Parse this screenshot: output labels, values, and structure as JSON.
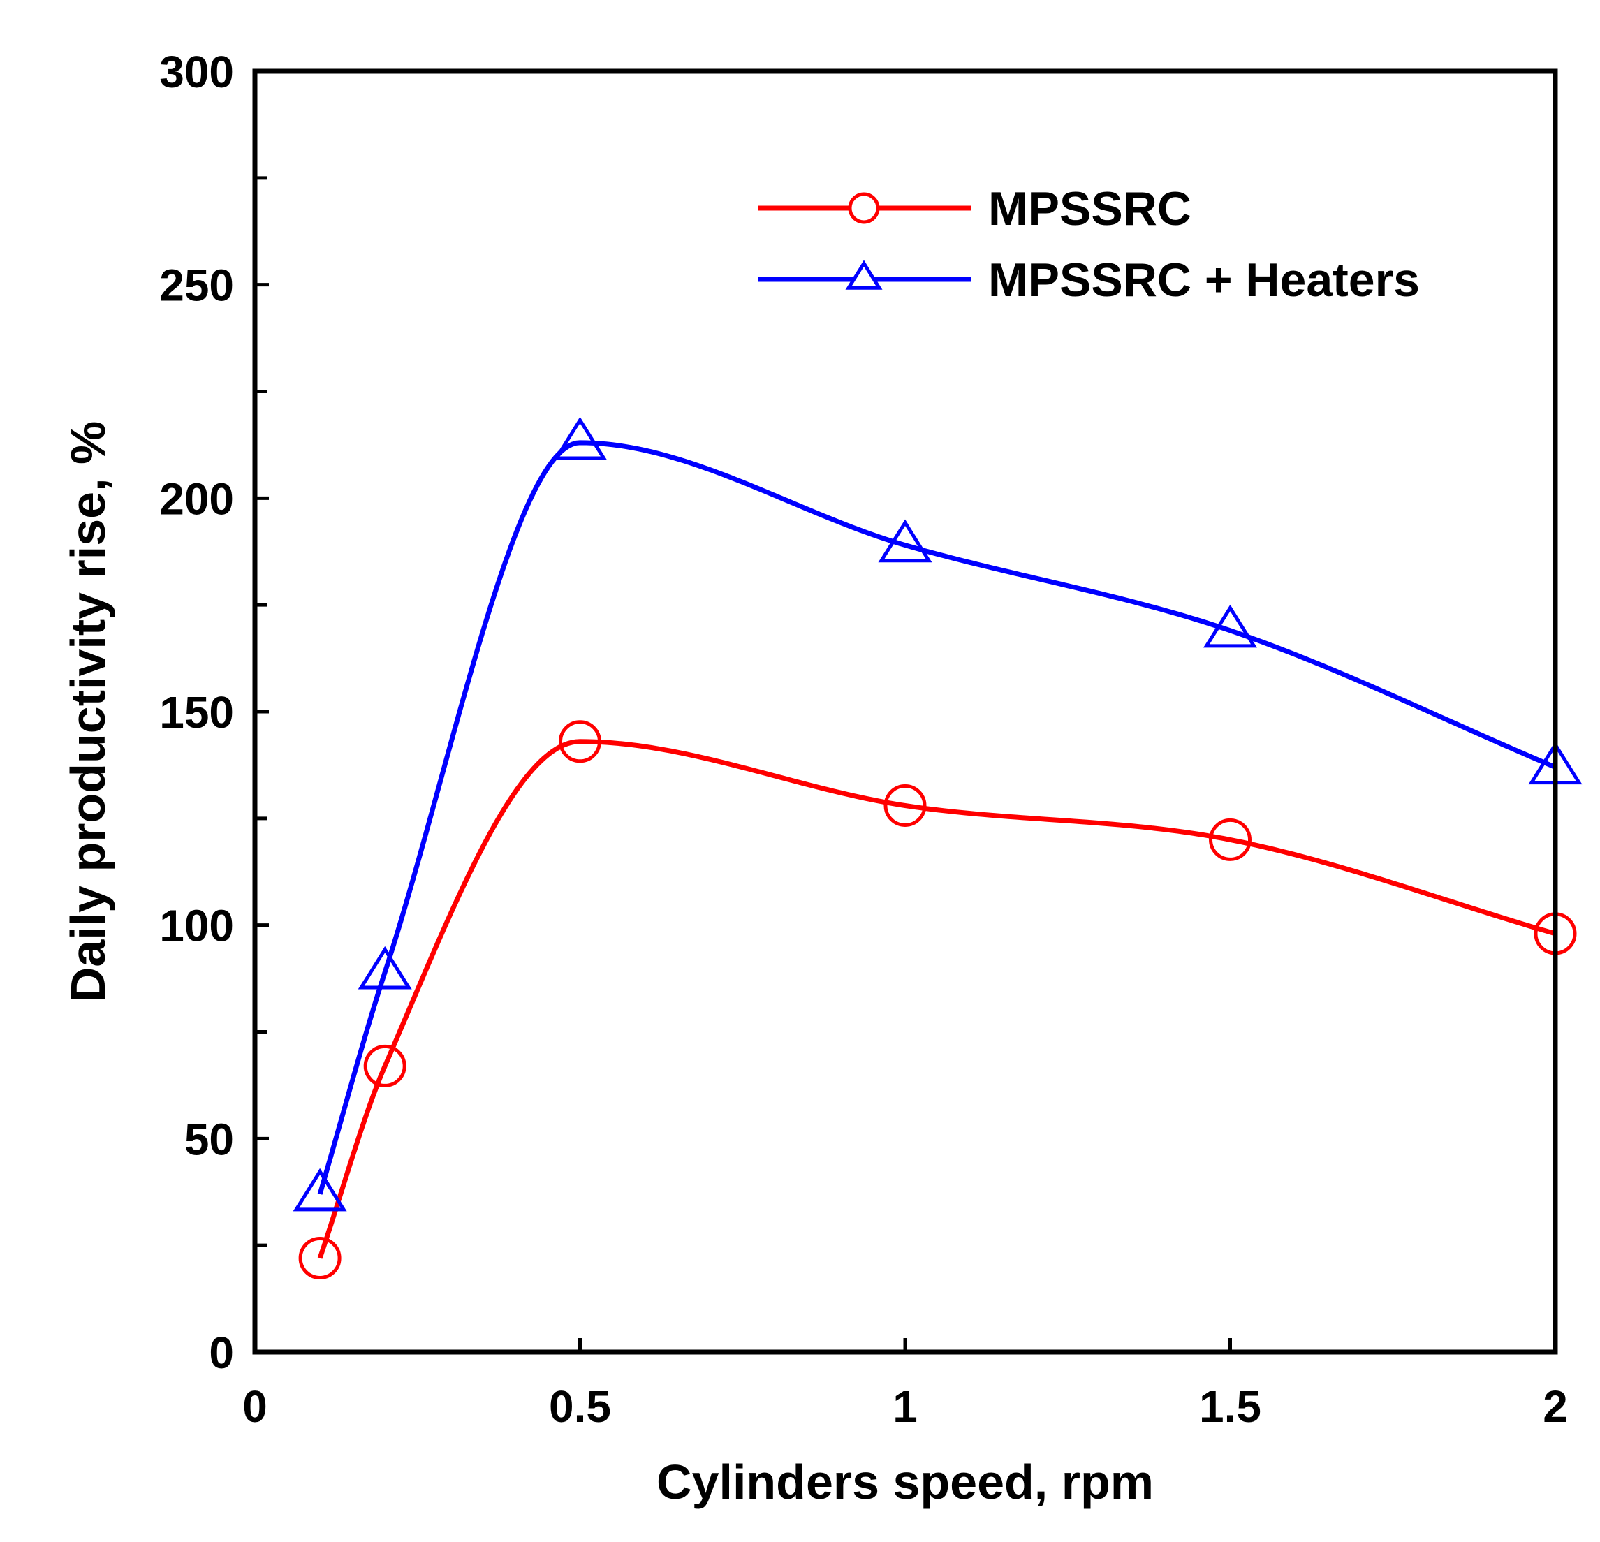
{
  "chart_data": {
    "type": "line",
    "title": "",
    "xlabel": "Cylinders speed, rpm",
    "ylabel": "Daily productivity rise, %",
    "xlim": [
      0,
      2
    ],
    "ylim": [
      0,
      300
    ],
    "x_ticks": [
      {
        "value": 0,
        "label": "0"
      },
      {
        "value": 0.5,
        "label": "0.5"
      },
      {
        "value": 1,
        "label": "1"
      },
      {
        "value": 1.5,
        "label": "1.5"
      },
      {
        "value": 2,
        "label": "2"
      }
    ],
    "y_ticks": [
      {
        "value": 0,
        "label": "0"
      },
      {
        "value": 50,
        "label": "50"
      },
      {
        "value": 100,
        "label": "100"
      },
      {
        "value": 150,
        "label": "150"
      },
      {
        "value": 200,
        "label": "200"
      },
      {
        "value": 250,
        "label": "250"
      },
      {
        "value": 300,
        "label": "300"
      }
    ],
    "y_minor_ticks": [
      25,
      75,
      125,
      175,
      225,
      275
    ],
    "legend_position": "top-right",
    "series": [
      {
        "name": "MPSSRC",
        "color": "#ff0000",
        "marker": "circle",
        "points": [
          [
            0.1,
            22
          ],
          [
            0.2,
            67
          ],
          [
            0.5,
            143
          ],
          [
            1.0,
            128
          ],
          [
            1.5,
            120
          ],
          [
            2.0,
            98
          ]
        ]
      },
      {
        "name": "MPSSRC + Heaters",
        "color": "#0000ff",
        "marker": "triangle",
        "points": [
          [
            0.1,
            37
          ],
          [
            0.2,
            89
          ],
          [
            0.5,
            213
          ],
          [
            1.0,
            189
          ],
          [
            1.5,
            169
          ],
          [
            2.0,
            137
          ]
        ]
      }
    ]
  }
}
